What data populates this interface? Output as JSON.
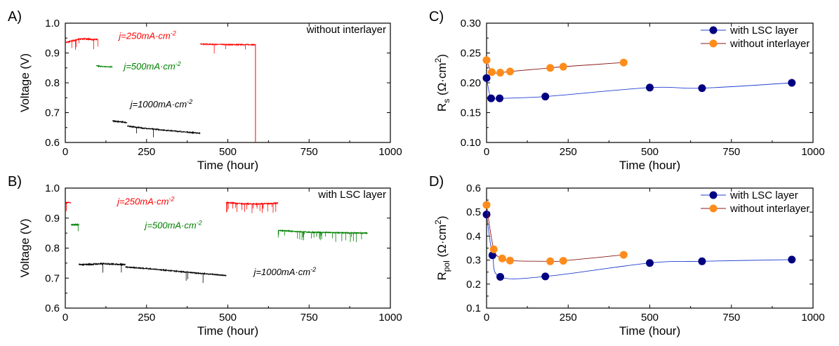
{
  "chart_data": [
    {
      "id": "A",
      "type": "line",
      "panel_label": "A)",
      "xlabel": "Time (hour)",
      "ylabel": "Voltage (V)",
      "xlim": [
        0,
        1000
      ],
      "ylim": [
        0.6,
        1.0
      ],
      "xticks": [
        "0",
        "250",
        "500",
        "750",
        "1000"
      ],
      "yticks": [
        "0.6",
        "0.7",
        "0.8",
        "0.9",
        "1.0"
      ],
      "title_text": "without interlayer",
      "annotations": [
        {
          "prefix": "j",
          "text": "=250mA·cm",
          "sup": "-2",
          "color": "#ff0000",
          "x": 165,
          "y": 0.947
        },
        {
          "prefix": "j",
          "text": "=500mA·cm",
          "sup": "-2",
          "color": "#008000",
          "x": 180,
          "y": 0.845
        },
        {
          "prefix": "j",
          "text": "=1000mA·cm",
          "sup": "-2",
          "color": "#000000",
          "x": 200,
          "y": 0.718
        }
      ],
      "series": [
        {
          "color": "#ff0000",
          "segments": [
            {
              "x": [
                0,
                20,
                40,
                60,
                80,
                100
              ],
              "y": [
                0.935,
                0.94,
                0.946,
                0.948,
                0.945,
                0.945
              ],
              "noise": 0.004,
              "drops": 6
            },
            {
              "x": [
                415,
                450,
                500,
                550,
                585
              ],
              "y": [
                0.93,
                0.929,
                0.928,
                0.928,
                0.928
              ],
              "noise": 0.003,
              "drops": 3
            },
            {
              "x": [
                585,
                585
              ],
              "y": [
                0.928,
                0.6
              ],
              "noise": 0
            }
          ]
        },
        {
          "color": "#008000",
          "segments": [
            {
              "x": [
                95,
                110,
                125,
                145
              ],
              "y": [
                0.857,
                0.855,
                0.854,
                0.854
              ],
              "noise": 0.003,
              "drops": 0
            }
          ]
        },
        {
          "color": "#000000",
          "segments": [
            {
              "x": [
                145,
                170,
                190
              ],
              "y": [
                0.672,
                0.669,
                0.667
              ],
              "noise": 0.004,
              "drops": 0
            },
            {
              "x": [
                190,
                240,
                300,
                360,
                415
              ],
              "y": [
                0.655,
                0.648,
                0.642,
                0.636,
                0.631
              ],
              "noise": 0.003,
              "drops": 2
            }
          ]
        }
      ]
    },
    {
      "id": "B",
      "type": "line",
      "panel_label": "B)",
      "xlabel": "Time (hour)",
      "ylabel": "Voltage (V)",
      "xlim": [
        0,
        1000
      ],
      "ylim": [
        0.6,
        1.0
      ],
      "xticks": [
        "0",
        "250",
        "500",
        "750",
        "1000"
      ],
      "yticks": [
        "0.6",
        "0.7",
        "0.8",
        "0.9",
        "1.0"
      ],
      "title_text": "with LSC layer",
      "annotations": [
        {
          "prefix": "j",
          "text": "=250mA·cm",
          "sup": "-2",
          "color": "#ff0000",
          "x": 160,
          "y": 0.945
        },
        {
          "prefix": "j",
          "text": "=500mA·cm",
          "sup": "-2",
          "color": "#008000",
          "x": 245,
          "y": 0.865
        },
        {
          "prefix": "j",
          "text": "=1000mA·cm",
          "sup": "-2",
          "color": "#000000",
          "x": 580,
          "y": 0.71
        }
      ],
      "series": [
        {
          "color": "#ff0000",
          "segments": [
            {
              "x": [
                0,
                10,
                18
              ],
              "y": [
                0.952,
                0.952,
                0.95
              ],
              "noise": 0.003,
              "drops": 1
            },
            {
              "x": [
                495,
                540,
                580,
                620,
                655
              ],
              "y": [
                0.952,
                0.948,
                0.947,
                0.948,
                0.95
              ],
              "noise": 0.003,
              "drops": 22
            }
          ]
        },
        {
          "color": "#008000",
          "segments": [
            {
              "x": [
                18,
                30,
                42
              ],
              "y": [
                0.878,
                0.878,
                0.878
              ],
              "noise": 0.004,
              "drops": 1
            },
            {
              "x": [
                655,
                700,
                750,
                800,
                850,
                930
              ],
              "y": [
                0.859,
                0.856,
                0.853,
                0.852,
                0.851,
                0.85
              ],
              "noise": 0.003,
              "drops": 28
            }
          ]
        },
        {
          "color": "#000000",
          "segments": [
            {
              "x": [
                42,
                80,
                120,
                160,
                185
              ],
              "y": [
                0.745,
                0.746,
                0.748,
                0.746,
                0.745
              ],
              "noise": 0.004,
              "drops": 2
            },
            {
              "x": [
                185,
                250,
                320,
                400,
                495
              ],
              "y": [
                0.737,
                0.732,
                0.725,
                0.717,
                0.709
              ],
              "noise": 0.003,
              "drops": 3
            }
          ]
        }
      ]
    },
    {
      "id": "C",
      "type": "line",
      "panel_label": "C)",
      "xlabel": "Time (hour)",
      "ylabel_main": "R",
      "ylabel_sub": "s",
      "ylabel_unit": " (Ω·cm",
      "ylabel_sup": "2",
      "ylabel_close": ")",
      "xlim": [
        0,
        1000
      ],
      "ylim": [
        0.1,
        0.3
      ],
      "xticks": [
        "0",
        "250",
        "500",
        "750",
        "1000"
      ],
      "yticks": [
        "0.10",
        "0.15",
        "0.20",
        "0.25",
        "0.30"
      ],
      "legend": "top-right",
      "series": [
        {
          "name": "with LSC layer",
          "color": "#000080",
          "line_color": "#2040d0",
          "x": [
            0,
            14,
            40,
            180,
            500,
            660,
            935
          ],
          "y": [
            0.208,
            0.174,
            0.174,
            0.177,
            0.192,
            0.191,
            0.2
          ]
        },
        {
          "name": "without interlayer",
          "color": "#ff8c1a",
          "line_color": "#8b1a1a",
          "x": [
            0,
            16,
            42,
            72,
            195,
            235,
            420
          ],
          "y": [
            0.238,
            0.218,
            0.217,
            0.219,
            0.225,
            0.227,
            0.234
          ]
        }
      ]
    },
    {
      "id": "D",
      "type": "line",
      "panel_label": "D)",
      "xlabel": "Time (hour)",
      "ylabel_main": "R",
      "ylabel_sub": "pol",
      "ylabel_unit": " (Ω·cm",
      "ylabel_sup": "2",
      "ylabel_close": ")",
      "xlim": [
        0,
        1000
      ],
      "ylim": [
        0.1,
        0.6
      ],
      "xticks": [
        "0",
        "250",
        "500",
        "750",
        "1000"
      ],
      "yticks": [
        "0.1",
        "0.2",
        "0.3",
        "0.4",
        "0.5",
        "0.6"
      ],
      "legend": "top-right",
      "series": [
        {
          "name": "with LSC layer",
          "color": "#000080",
          "line_color": "#2040d0",
          "x": [
            0,
            18,
            42,
            180,
            500,
            660,
            935
          ],
          "y": [
            0.49,
            0.32,
            0.23,
            0.232,
            0.288,
            0.295,
            0.302
          ]
        },
        {
          "name": "without interlayer",
          "color": "#ff8c1a",
          "line_color": "#8b1a1a",
          "x": [
            0,
            22,
            48,
            72,
            195,
            235,
            420
          ],
          "y": [
            0.53,
            0.345,
            0.307,
            0.298,
            0.295,
            0.297,
            0.322
          ]
        }
      ]
    }
  ]
}
